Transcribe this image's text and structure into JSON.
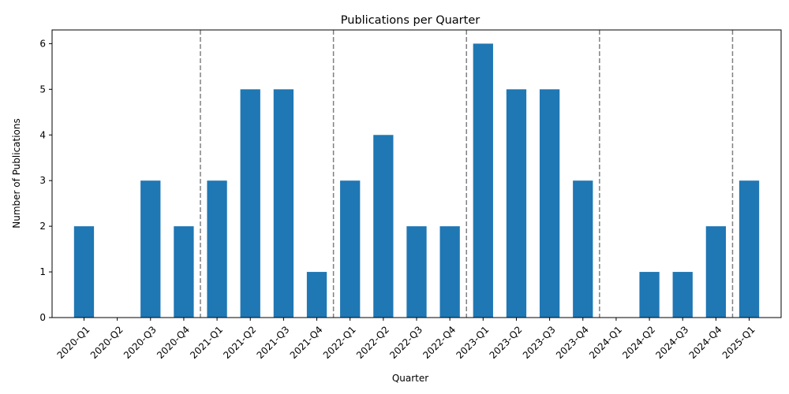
{
  "chart_data": {
    "type": "bar",
    "title": "Publications per Quarter",
    "xlabel": "Quarter",
    "ylabel": "Number of Publications",
    "categories": [
      "2020-Q1",
      "2020-Q2",
      "2020-Q3",
      "2020-Q4",
      "2021-Q1",
      "2021-Q2",
      "2021-Q3",
      "2021-Q4",
      "2022-Q1",
      "2022-Q2",
      "2022-Q3",
      "2022-Q4",
      "2023-Q1",
      "2023-Q2",
      "2023-Q3",
      "2023-Q4",
      "2024-Q1",
      "2024-Q2",
      "2024-Q3",
      "2024-Q4",
      "2025-Q1"
    ],
    "values": [
      2,
      0,
      3,
      2,
      3,
      5,
      5,
      1,
      3,
      4,
      2,
      2,
      6,
      5,
      5,
      3,
      0,
      1,
      1,
      2,
      3
    ],
    "ylim": [
      0,
      6.3
    ],
    "yticks": [
      0,
      1,
      2,
      3,
      4,
      5,
      6
    ],
    "year_separators_between": [
      "2020-Q4|2021-Q1",
      "2021-Q4|2022-Q1",
      "2022-Q4|2023-Q1",
      "2023-Q4|2024-Q1",
      "2024-Q4|2025-Q1"
    ],
    "bar_color": "#1f77b4",
    "separator_color": "#808080",
    "grid": false,
    "legend": "none"
  }
}
